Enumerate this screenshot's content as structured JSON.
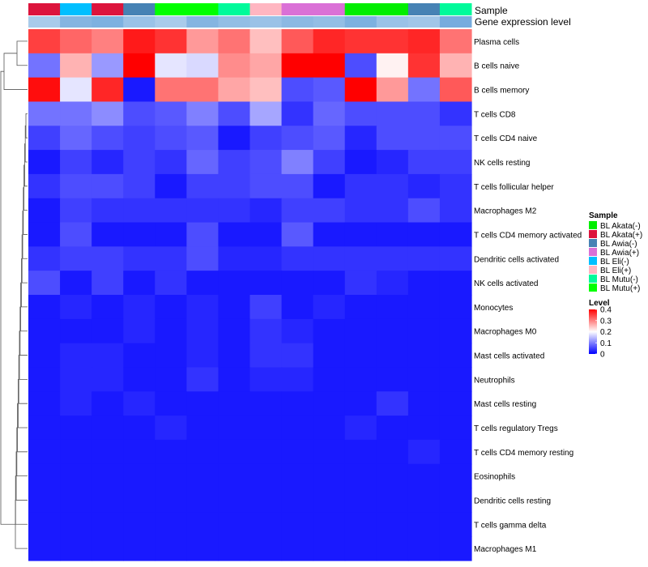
{
  "chart_data": {
    "type": "heatmap",
    "annotation_labels": [
      "Sample",
      "Gene expression level"
    ],
    "row_labels": [
      "Plasma cells",
      "B cells naive",
      "B cells memory",
      "T cells CD8",
      "T cells CD4 naive",
      "NK cells resting",
      "T cells follicular helper",
      "Macrophages M2",
      "T cells CD4 memory activated",
      "Dendritic cells activated",
      "NK cells activated",
      "Monocytes",
      "Macrophages M0",
      "Mast cells activated",
      "Neutrophils",
      "Mast cells resting",
      "T cells regulatory  Tregs",
      "T cells CD4 memory resting",
      "Eosinophils",
      "Dendritic cells resting",
      "T cells gamma delta",
      "Macrophages M1"
    ],
    "column_samples": [
      "BL Akata(+)",
      "BL Eli(-)",
      "BL Akata(+)",
      "BL Awia(-)",
      "BL Mutu(+)",
      "BL Mutu(+)",
      "BL Mutu(-)",
      "BL Eli(+)",
      "BL Awia(+)",
      "BL Awia(+)",
      "BL Akata(-)",
      "BL Akata(-)",
      "BL Awia(-)",
      "BL Mutu(-)"
    ],
    "column_expression_level": [
      0.12,
      0.17,
      0.18,
      0.14,
      0.12,
      0.17,
      0.15,
      0.14,
      0.16,
      0.15,
      0.18,
      0.14,
      0.13,
      0.19
    ],
    "values": [
      [
        0.35,
        0.32,
        0.3,
        0.38,
        0.36,
        0.28,
        0.31,
        0.25,
        0.33,
        0.37,
        0.36,
        0.36,
        0.37,
        0.31
      ],
      [
        0.09,
        0.26,
        0.12,
        0.4,
        0.18,
        0.17,
        0.29,
        0.27,
        0.4,
        0.4,
        0.06,
        0.21,
        0.36,
        0.26
      ],
      [
        0.39,
        0.18,
        0.37,
        0.02,
        0.31,
        0.31,
        0.27,
        0.25,
        0.06,
        0.07,
        0.4,
        0.28,
        0.09,
        0.33
      ],
      [
        0.09,
        0.09,
        0.11,
        0.06,
        0.07,
        0.1,
        0.06,
        0.13,
        0.04,
        0.08,
        0.06,
        0.06,
        0.06,
        0.04
      ],
      [
        0.05,
        0.08,
        0.06,
        0.05,
        0.06,
        0.07,
        0.02,
        0.05,
        0.06,
        0.07,
        0.03,
        0.06,
        0.06,
        0.06
      ],
      [
        0.02,
        0.05,
        0.03,
        0.05,
        0.04,
        0.08,
        0.05,
        0.06,
        0.1,
        0.05,
        0.02,
        0.03,
        0.05,
        0.05
      ],
      [
        0.04,
        0.06,
        0.06,
        0.05,
        0.02,
        0.05,
        0.05,
        0.06,
        0.06,
        0.02,
        0.04,
        0.04,
        0.03,
        0.04
      ],
      [
        0.02,
        0.05,
        0.04,
        0.04,
        0.04,
        0.04,
        0.04,
        0.03,
        0.05,
        0.05,
        0.04,
        0.04,
        0.06,
        0.04
      ],
      [
        0.02,
        0.06,
        0.02,
        0.02,
        0.02,
        0.06,
        0.02,
        0.02,
        0.07,
        0.02,
        0.02,
        0.02,
        0.02,
        0.02
      ],
      [
        0.04,
        0.05,
        0.05,
        0.04,
        0.04,
        0.06,
        0.03,
        0.03,
        0.04,
        0.04,
        0.04,
        0.04,
        0.04,
        0.04
      ],
      [
        0.06,
        0.02,
        0.05,
        0.02,
        0.04,
        0.02,
        0.02,
        0.02,
        0.02,
        0.02,
        0.04,
        0.03,
        0.02,
        0.02
      ],
      [
        0.02,
        0.03,
        0.02,
        0.03,
        0.02,
        0.03,
        0.02,
        0.05,
        0.02,
        0.03,
        0.02,
        0.02,
        0.02,
        0.02
      ],
      [
        0.02,
        0.02,
        0.02,
        0.03,
        0.02,
        0.03,
        0.02,
        0.04,
        0.03,
        0.02,
        0.02,
        0.02,
        0.02,
        0.02
      ],
      [
        0.02,
        0.03,
        0.03,
        0.02,
        0.02,
        0.03,
        0.02,
        0.04,
        0.04,
        0.02,
        0.02,
        0.02,
        0.02,
        0.02
      ],
      [
        0.02,
        0.03,
        0.03,
        0.02,
        0.02,
        0.04,
        0.02,
        0.03,
        0.03,
        0.02,
        0.02,
        0.02,
        0.02,
        0.02
      ],
      [
        0.02,
        0.03,
        0.02,
        0.03,
        0.02,
        0.02,
        0.02,
        0.02,
        0.02,
        0.02,
        0.02,
        0.04,
        0.02,
        0.02
      ],
      [
        0.02,
        0.02,
        0.02,
        0.02,
        0.03,
        0.02,
        0.02,
        0.02,
        0.02,
        0.02,
        0.03,
        0.02,
        0.02,
        0.02
      ],
      [
        0.02,
        0.02,
        0.02,
        0.02,
        0.02,
        0.02,
        0.02,
        0.02,
        0.02,
        0.02,
        0.02,
        0.02,
        0.03,
        0.02
      ],
      [
        0.02,
        0.02,
        0.02,
        0.02,
        0.02,
        0.02,
        0.02,
        0.02,
        0.02,
        0.02,
        0.02,
        0.02,
        0.02,
        0.02
      ],
      [
        0.02,
        0.02,
        0.02,
        0.02,
        0.02,
        0.02,
        0.02,
        0.02,
        0.02,
        0.02,
        0.02,
        0.02,
        0.02,
        0.02
      ],
      [
        0.02,
        0.02,
        0.02,
        0.02,
        0.02,
        0.02,
        0.02,
        0.02,
        0.02,
        0.02,
        0.02,
        0.02,
        0.02,
        0.02
      ],
      [
        0.02,
        0.02,
        0.02,
        0.02,
        0.02,
        0.02,
        0.02,
        0.02,
        0.02,
        0.02,
        0.02,
        0.02,
        0.02,
        0.02
      ]
    ],
    "legend_sample": {
      "title": "Sample",
      "entries": [
        {
          "label": "BL Akata(-)",
          "color": "#00ee00"
        },
        {
          "label": "BL Akata(+)",
          "color": "#dc143c"
        },
        {
          "label": "BL Awia(-)",
          "color": "#4682b4"
        },
        {
          "label": "BL Awia(+)",
          "color": "#da70d6"
        },
        {
          "label": "BL Eli(-)",
          "color": "#00bfff"
        },
        {
          "label": "BL Eli(+)",
          "color": "#ffb6c1"
        },
        {
          "label": "BL Mutu(-)",
          "color": "#00fa9a"
        },
        {
          "label": "BL Mutu(+)",
          "color": "#00ff00"
        }
      ]
    },
    "legend_level": {
      "title": "Level",
      "ticks": [
        "0.4",
        "0.3",
        "0.2",
        "0.1",
        "0"
      ],
      "range": [
        0,
        0.4
      ]
    },
    "color_scale": {
      "low": "#0000ff",
      "mid": "#ffffff",
      "high": "#ff0000",
      "mid_value": 0.2
    },
    "expression_scale": {
      "low": "#ffffff",
      "high": "#6fa8dc",
      "range": [
        0,
        0.2
      ]
    }
  }
}
